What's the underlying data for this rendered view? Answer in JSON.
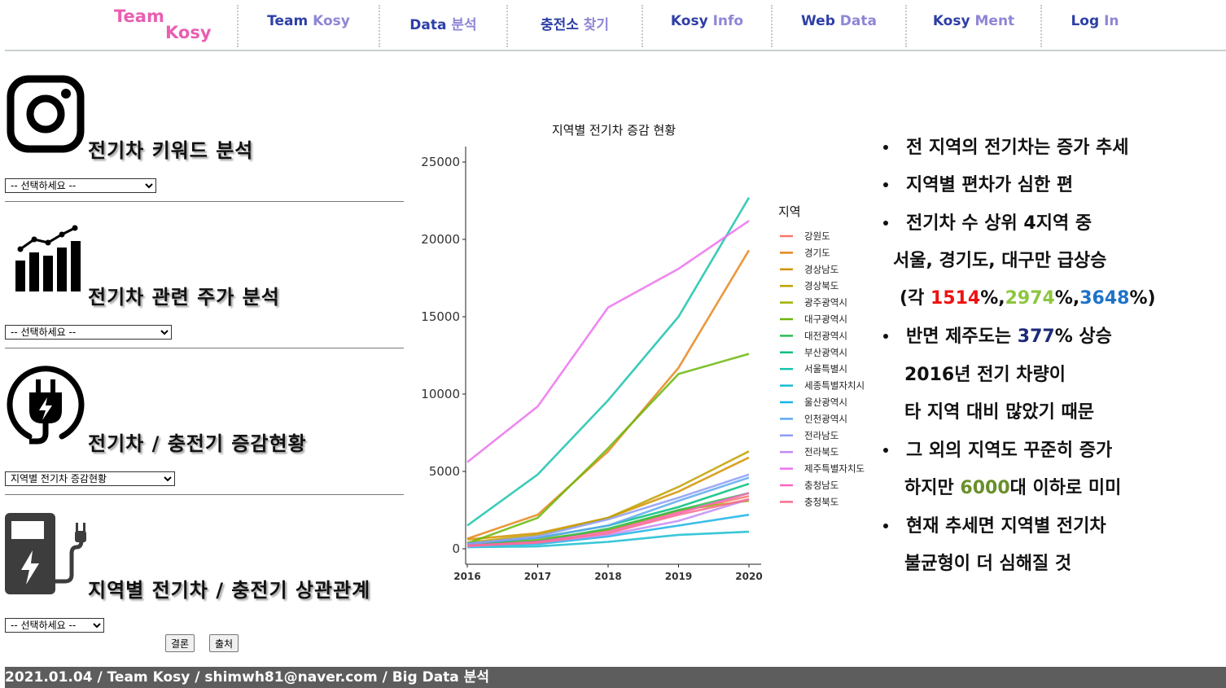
{
  "nav": {
    "logo_line1": "Team",
    "logo_line2": "Kosy",
    "items": [
      {
        "bold": "Team ",
        "light": "Kosy"
      },
      {
        "bold": "Data ",
        "light": "분석"
      },
      {
        "bold": "충전소 ",
        "light": "찾기"
      },
      {
        "bold": "Kosy ",
        "light": "Info"
      },
      {
        "bold": "Web ",
        "light": "Data"
      },
      {
        "bold": "Kosy ",
        "light": "Ment"
      },
      {
        "bold": "Log ",
        "light": "In"
      }
    ]
  },
  "sidebar": {
    "sections": [
      {
        "title": "전기차 키워드 분석",
        "select": "-- 선택하세요 --",
        "icon": "instagram-icon"
      },
      {
        "title": "전기차 관련 주가 분석",
        "select": "-- 선택하세요 --",
        "icon": "stock-chart-icon"
      },
      {
        "title": "전기차 / 충전기 증감현황",
        "select": "지역별 전기차 증감현황",
        "icon": "ev-plug-icon"
      },
      {
        "title": "지역별 전기차 / 충전기 상관관계",
        "select": "-- 선택하세요 --",
        "icon": "charging-station-icon"
      }
    ],
    "buttons": {
      "result": "결론",
      "source": "출처"
    }
  },
  "chart_data": {
    "type": "line",
    "title": "지역별 전기차 증감 현황",
    "xlabel": "",
    "ylabel": "",
    "legend_title": "지역",
    "x": [
      "2016",
      "2017",
      "2018",
      "2019",
      "2020"
    ],
    "yticks": [
      "0",
      "5000",
      "10000",
      "15000",
      "20000",
      "25000"
    ],
    "ylim": [
      -1000,
      26000
    ],
    "grid": false,
    "legend_position": "right",
    "series": [
      {
        "name": "강원도",
        "color": "#f8766d",
        "values": [
          250,
          500,
          1200,
          2400,
          3400
        ]
      },
      {
        "name": "경기도",
        "color": "#e7861b",
        "values": [
          650,
          2200,
          6300,
          11700,
          19300
        ]
      },
      {
        "name": "경상남도",
        "color": "#d39200",
        "values": [
          600,
          1000,
          2000,
          3700,
          5900
        ]
      },
      {
        "name": "경상북도",
        "color": "#bfa100",
        "values": [
          400,
          900,
          2000,
          4000,
          6300
        ]
      },
      {
        "name": "광주광역시",
        "color": "#9fb100",
        "values": [
          300,
          600,
          1200,
          2500,
          3100
        ]
      },
      {
        "name": "대구광역시",
        "color": "#6ab70b",
        "values": [
          350,
          2000,
          6500,
          11300,
          12600
        ]
      },
      {
        "name": "대전광역시",
        "color": "#2cbc52",
        "values": [
          250,
          500,
          1300,
          2500,
          3600
        ]
      },
      {
        "name": "부산광역시",
        "color": "#00bf7d",
        "values": [
          300,
          700,
          1500,
          2700,
          4200
        ]
      },
      {
        "name": "서울특별시",
        "color": "#1ac2ad",
        "values": [
          1500,
          4800,
          9600,
          15000,
          22700
        ]
      },
      {
        "name": "세종특별자치시",
        "color": "#17bdd0",
        "values": [
          100,
          150,
          450,
          900,
          1100
        ]
      },
      {
        "name": "울산광역시",
        "color": "#19b3e6",
        "values": [
          200,
          300,
          800,
          1500,
          2200
        ]
      },
      {
        "name": "인천광역시",
        "color": "#5ea8f1",
        "values": [
          350,
          700,
          1500,
          3100,
          4600
        ]
      },
      {
        "name": "전라남도",
        "color": "#8c9cf5",
        "values": [
          300,
          800,
          1900,
          3300,
          4800
        ]
      },
      {
        "name": "전라북도",
        "color": "#c28bf4",
        "values": [
          150,
          400,
          900,
          1800,
          3200
        ]
      },
      {
        "name": "제주특별자치도",
        "color": "#ec72ef",
        "values": [
          5600,
          9200,
          15600,
          18100,
          21200
        ]
      },
      {
        "name": "충청남도",
        "color": "#f866c0",
        "values": [
          200,
          450,
          1100,
          2300,
          3600
        ]
      },
      {
        "name": "충청북도",
        "color": "#fb6c8d",
        "values": [
          200,
          400,
          1000,
          2200,
          3200
        ]
      }
    ]
  },
  "bullets": [
    {
      "dot": true,
      "segments": [
        {
          "text": "전 지역의 전기차는 증가 추세"
        }
      ]
    },
    {
      "dot": true,
      "segments": [
        {
          "text": "지역별 편차가 심한 편"
        }
      ]
    },
    {
      "dot": true,
      "segments": [
        {
          "text": "전기차 수 상위 4지역 중"
        }
      ]
    },
    {
      "dot": false,
      "segments": [
        {
          "text": "서울, 경기도, 대구만 급상승"
        }
      ]
    },
    {
      "dot": false,
      "segments": [
        {
          "text": "(각 "
        },
        {
          "text": "1514",
          "color": "#ee1111"
        },
        {
          "text": "%,"
        },
        {
          "text": "2974",
          "color": "#8dc63f"
        },
        {
          "text": "%,"
        },
        {
          "text": "3648",
          "color": "#1e73c8"
        },
        {
          "text": "%)"
        }
      ]
    },
    {
      "dot": true,
      "segments": [
        {
          "text": "반면 제주도는 "
        },
        {
          "text": "377",
          "color": "#1e2a78"
        },
        {
          "text": "% 상승"
        }
      ]
    },
    {
      "dot": false,
      "segments": [
        {
          "text": "2016년 전기 차량이"
        }
      ]
    },
    {
      "dot": false,
      "segments": [
        {
          "text": "타 지역 대비 많았기 때문"
        }
      ]
    },
    {
      "dot": true,
      "segments": [
        {
          "text": "그 외의 지역도 꾸준히 증가"
        }
      ]
    },
    {
      "dot": false,
      "segments": [
        {
          "text": "하지만 "
        },
        {
          "text": "6000",
          "color": "#6a8f2a"
        },
        {
          "text": "대 이하로 미미"
        }
      ]
    },
    {
      "dot": true,
      "segments": [
        {
          "text": "현재 추세면 지역별 전기차"
        }
      ]
    },
    {
      "dot": false,
      "segments": [
        {
          "text": "불균형이 더 심해질 것"
        }
      ]
    }
  ],
  "footer": {
    "text": "2021.01.04 / Team Kosy / shimwh81@naver.com / Big Data 분석"
  }
}
